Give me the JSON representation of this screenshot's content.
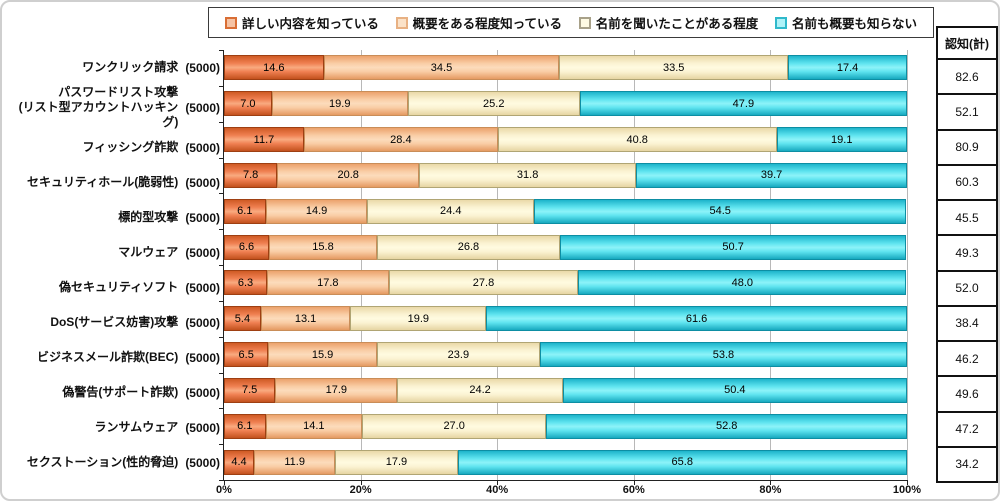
{
  "legend": {
    "items": [
      {
        "label": "詳しい内容を知っている",
        "border": "#d96e35",
        "fill": "#f6c3a4"
      },
      {
        "label": "概要をある程度知っている",
        "border": "#e8b183",
        "fill": "#fbe2c8"
      },
      {
        "label": "名前を聞いたことがある程度",
        "border": "#a8a189",
        "fill": "#fefae3"
      },
      {
        "label": "名前も概要も知らない",
        "border": "#2fb9cb",
        "fill": "#aef2f8"
      }
    ]
  },
  "sample_label": "(5000)",
  "totals_header": "認知(計)",
  "x_axis": {
    "ticks": [
      "0%",
      "20%",
      "40%",
      "60%",
      "80%",
      "100%"
    ]
  },
  "chart_data": {
    "type": "bar",
    "stacked": true,
    "orientation": "horizontal",
    "title": "",
    "xlabel": "",
    "ylabel": "",
    "xlim": [
      0,
      100
    ],
    "x_tick_labels": [
      "0%",
      "20%",
      "40%",
      "60%",
      "80%",
      "100%"
    ],
    "grid": true,
    "legend_position": "top",
    "n_per_category": 5000,
    "categories": [
      "ワンクリック請求",
      "パスワードリスト攻撃\n(リスト型アカウントハッキング)",
      "フィッシング詐欺",
      "セキュリティホール(脆弱性)",
      "標的型攻撃",
      "マルウェア",
      "偽セキュリティソフト",
      "DoS(サービス妨害)攻撃",
      "ビジネスメール詐欺(BEC)",
      "偽警告(サポート詐欺)",
      "ランサムウェア",
      "セクストーション(性的脅迫)"
    ],
    "series": [
      {
        "name": "詳しい内容を知っている",
        "color": "#ef8049",
        "values": [
          14.6,
          7.0,
          11.7,
          7.8,
          6.1,
          6.6,
          6.3,
          5.4,
          6.5,
          7.5,
          6.1,
          4.4
        ]
      },
      {
        "name": "概要をある程度知っている",
        "color": "#f9cda5",
        "values": [
          34.5,
          19.9,
          28.4,
          20.8,
          14.9,
          15.8,
          17.8,
          13.1,
          15.9,
          17.9,
          14.1,
          11.9
        ]
      },
      {
        "name": "名前を聞いたことがある程度",
        "color": "#fdf6d8",
        "values": [
          33.5,
          25.2,
          40.8,
          31.8,
          24.4,
          26.8,
          27.8,
          19.9,
          23.9,
          24.2,
          27.0,
          17.9
        ]
      },
      {
        "name": "名前も概要も知らない",
        "color": "#5fe4ef",
        "values": [
          17.4,
          47.9,
          19.1,
          39.7,
          54.5,
          50.7,
          48.0,
          61.6,
          53.8,
          50.4,
          52.8,
          65.8
        ]
      }
    ],
    "totals": {
      "label": "認知(計)",
      "values": [
        82.6,
        52.1,
        80.9,
        60.3,
        45.5,
        49.3,
        52.0,
        38.4,
        46.2,
        49.6,
        47.2,
        34.2
      ]
    }
  }
}
